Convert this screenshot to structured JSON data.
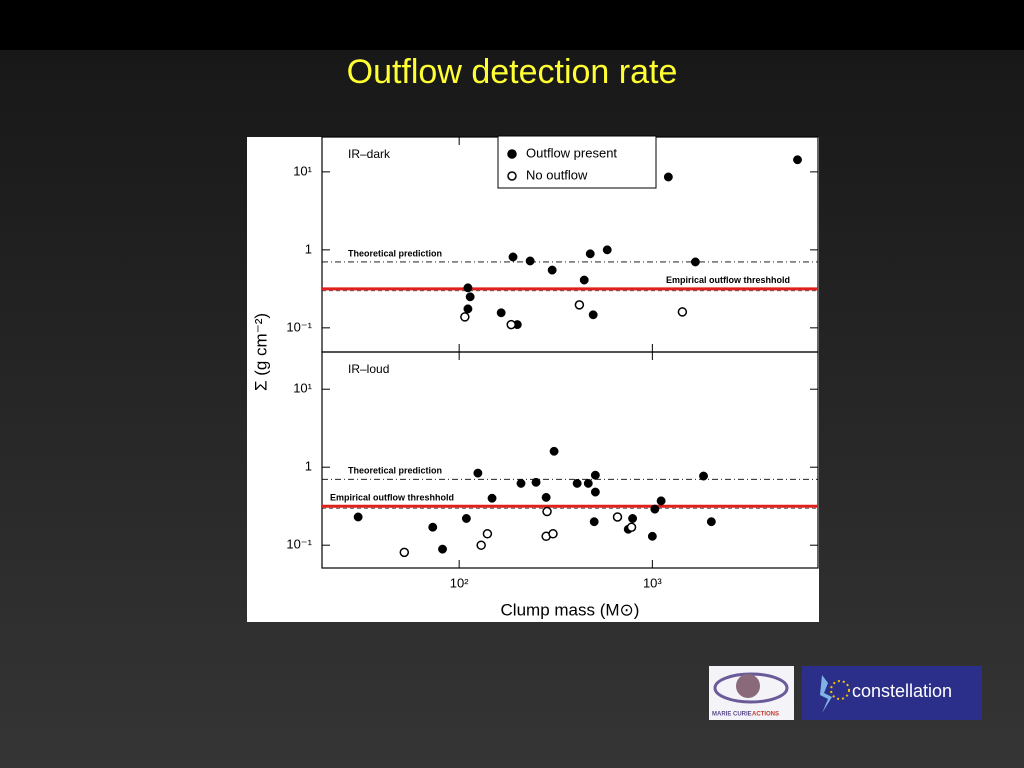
{
  "title": "Outflow detection rate",
  "chart_data": [
    {
      "type": "scatter",
      "panel_label": "IR–dark",
      "ylabel": "Σ (g cm⁻²)",
      "xscale": "log",
      "yscale": "log",
      "xlim": [
        19.5,
        7200
      ],
      "ylim": [
        0.049,
        28
      ],
      "yticks": [
        {
          "value": 10,
          "label": "10¹"
        },
        1,
        {
          "value": 0.1,
          "label": "10⁻¹"
        }
      ],
      "legend": "top-center",
      "series": [
        {
          "name": "Outflow present",
          "color": "#000000",
          "marker": "filled",
          "x": [
            111,
            114,
            111,
            165,
            190,
            200,
            233,
            303,
            444,
            477,
            494,
            584,
            1210,
            1670,
            5640
          ],
          "values": [
            0.326,
            0.25,
            0.175,
            0.156,
            0.81,
            0.11,
            0.72,
            0.55,
            0.41,
            0.89,
            0.147,
            1.0,
            8.6,
            0.7,
            14.3
          ]
        },
        {
          "name": "No outflow",
          "color": "#000000",
          "marker": "open",
          "x": [
            107,
            186,
            419,
            1430
          ],
          "values": [
            0.138,
            0.11,
            0.197,
            0.16
          ]
        }
      ],
      "hlines": [
        {
          "label": "Theoretical prediction",
          "value": 0.7,
          "color": "#000000",
          "style": "dashdot"
        },
        {
          "label": "Empirical outflow threshhold",
          "value": 0.316,
          "color": "#e0201b",
          "style": "solid"
        }
      ]
    },
    {
      "type": "scatter",
      "panel_label": "IR–loud",
      "xlabel": "Clump mass (M⊙)",
      "xscale": "log",
      "yscale": "log",
      "xlim": [
        19.5,
        7200
      ],
      "ylim": [
        0.051,
        30
      ],
      "xticks": [
        {
          "value": 100,
          "label": "10²"
        },
        {
          "value": 1000,
          "label": "10³"
        }
      ],
      "yticks": [
        {
          "value": 10,
          "label": "10¹"
        },
        1,
        {
          "value": 0.1,
          "label": "10⁻¹"
        }
      ],
      "series": [
        {
          "color": "#000000",
          "marker": "filled",
          "x": [
            30,
            73,
            82,
            109,
            125,
            148,
            209,
            250,
            282,
            310,
            408,
            466,
            507,
            507,
            500,
            750,
            790,
            1000,
            1030,
            1110,
            1840,
            2020
          ],
          "values": [
            0.23,
            0.17,
            0.089,
            0.22,
            0.84,
            0.4,
            0.62,
            0.64,
            0.41,
            1.6,
            0.62,
            0.62,
            0.79,
            0.48,
            0.2,
            0.16,
            0.22,
            0.13,
            0.29,
            0.37,
            0.77,
            0.2
          ]
        },
        {
          "color": "#000000",
          "marker": "open",
          "x": [
            52,
            130,
            140,
            282,
            285,
            306,
            660,
            780
          ],
          "values": [
            0.081,
            0.1,
            0.14,
            0.13,
            0.27,
            0.14,
            0.23,
            0.17
          ]
        }
      ],
      "hlines": [
        {
          "label": "Theoretical prediction",
          "value": 0.7,
          "color": "#000000",
          "style": "dashdot"
        },
        {
          "label": "Empirical outflow threshhold",
          "value": 0.316,
          "color": "#e0201b",
          "style": "solid"
        }
      ]
    }
  ],
  "logos": {
    "marie_curie": [
      "MARIE CURIE",
      "ACTIONS"
    ],
    "constellation": "constellation"
  }
}
